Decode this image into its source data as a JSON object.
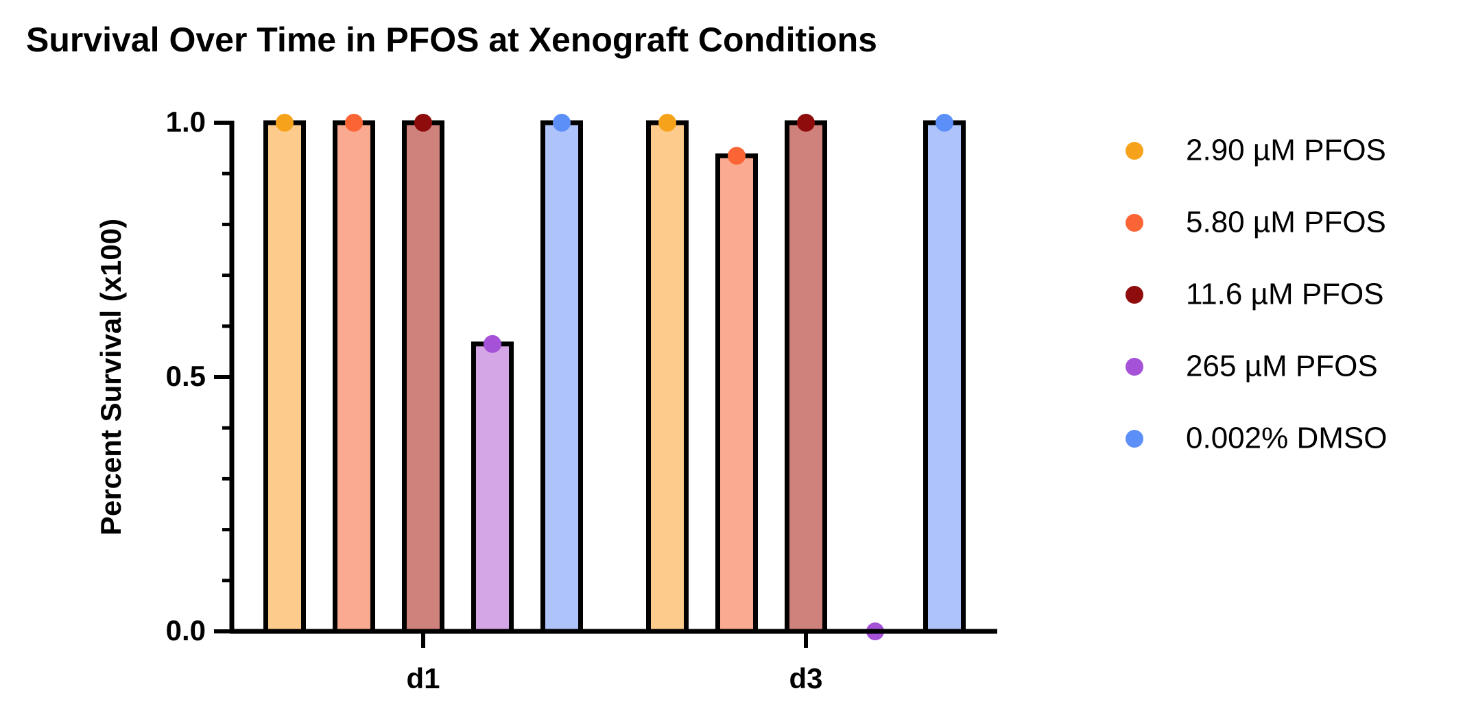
{
  "chart_data": {
    "type": "bar",
    "title": "Survival Over Time in PFOS at Xenograft Conditions",
    "y_label": "Percent Survival (x100)",
    "categories": [
      "d1",
      "d3"
    ],
    "series": [
      {
        "name": "2.90 µM PFOS",
        "color": "#f7a21b",
        "fill": "#fdcb8c",
        "values": [
          1,
          1
        ]
      },
      {
        "name": "5.80 µM PFOS",
        "color": "#fb6535",
        "fill": "#f9aa90",
        "values": [
          1,
          0.935
        ]
      },
      {
        "name": "11.6 µM PFOS",
        "color": "#8e0c0c",
        "fill": "#cf817b",
        "values": [
          1,
          1
        ]
      },
      {
        "name": "265 µM PFOS",
        "color": "#a552d8",
        "fill": "#d5a6e6",
        "values": [
          0.565,
          0
        ]
      },
      {
        "name": "0.002% DMSO",
        "color": "#5d8ff8",
        "fill": "#afc3fb",
        "values": [
          1,
          1
        ]
      }
    ],
    "ylim": [
      0,
      1
    ],
    "yticks": [
      {
        "value": 0,
        "label": "0.0"
      },
      {
        "value": 0.5,
        "label": "0.5"
      },
      {
        "value": 1,
        "label": "1.0"
      }
    ],
    "minor_yticks": [
      0.1,
      0.2,
      0.3,
      0.4,
      0.6,
      0.7,
      0.8,
      0.9
    ],
    "legend": "right"
  }
}
